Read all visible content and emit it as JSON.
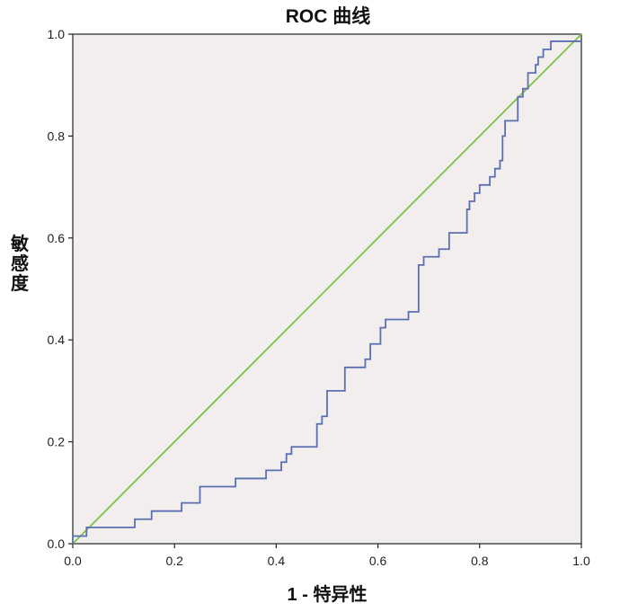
{
  "chart_data": {
    "type": "line",
    "title": "ROC 曲线",
    "xlabel": "1 - 特异性",
    "ylabel": "敏感度",
    "xlim": [
      0.0,
      1.0
    ],
    "ylim": [
      0.0,
      1.0
    ],
    "x_ticks": [
      "0.0",
      "0.2",
      "0.4",
      "0.6",
      "0.8",
      "1.0"
    ],
    "y_ticks": [
      "0.0",
      "0.2",
      "0.4",
      "0.6",
      "0.8",
      "1.0"
    ],
    "grid": false,
    "legend": "none",
    "background_color": "#f2eeee",
    "series": [
      {
        "style": "step",
        "color": "#5b6fb3",
        "x": [
          0.0,
          0.0,
          0.027,
          0.027,
          0.122,
          0.122,
          0.155,
          0.155,
          0.214,
          0.214,
          0.25,
          0.25,
          0.32,
          0.32,
          0.38,
          0.38,
          0.41,
          0.41,
          0.42,
          0.42,
          0.43,
          0.43,
          0.45,
          0.45,
          0.48,
          0.48,
          0.49,
          0.49,
          0.5,
          0.5,
          0.535,
          0.535,
          0.575,
          0.575,
          0.585,
          0.585,
          0.605,
          0.605,
          0.615,
          0.615,
          0.66,
          0.66,
          0.68,
          0.68,
          0.69,
          0.69,
          0.72,
          0.72,
          0.74,
          0.74,
          0.775,
          0.775,
          0.78,
          0.78,
          0.79,
          0.79,
          0.8,
          0.8,
          0.82,
          0.82,
          0.83,
          0.83,
          0.84,
          0.84,
          0.845,
          0.845,
          0.85,
          0.85,
          0.86,
          0.86,
          0.875,
          0.875,
          0.885,
          0.885,
          0.895,
          0.895,
          0.91,
          0.91,
          0.915,
          0.915,
          0.925,
          0.925,
          0.94,
          0.94,
          1.0
        ],
        "y": [
          0.0,
          0.015,
          0.015,
          0.032,
          0.032,
          0.048,
          0.048,
          0.064,
          0.064,
          0.08,
          0.08,
          0.112,
          0.112,
          0.128,
          0.128,
          0.144,
          0.144,
          0.16,
          0.16,
          0.176,
          0.176,
          0.19,
          0.19,
          0.19,
          0.19,
          0.235,
          0.235,
          0.25,
          0.25,
          0.3,
          0.3,
          0.346,
          0.346,
          0.362,
          0.362,
          0.392,
          0.392,
          0.424,
          0.424,
          0.44,
          0.44,
          0.455,
          0.455,
          0.547,
          0.547,
          0.563,
          0.563,
          0.578,
          0.578,
          0.61,
          0.61,
          0.656,
          0.656,
          0.672,
          0.672,
          0.688,
          0.688,
          0.704,
          0.704,
          0.72,
          0.72,
          0.736,
          0.736,
          0.752,
          0.752,
          0.8,
          0.8,
          0.83,
          0.83,
          0.83,
          0.83,
          0.877,
          0.877,
          0.893,
          0.893,
          0.924,
          0.924,
          0.94,
          0.94,
          0.955,
          0.955,
          0.97,
          0.97,
          0.986,
          0.986
        ]
      },
      {
        "style": "line",
        "color": "#7dc24b",
        "x": [
          0.0,
          1.0
        ],
        "y": [
          0.0,
          1.0
        ]
      }
    ]
  }
}
